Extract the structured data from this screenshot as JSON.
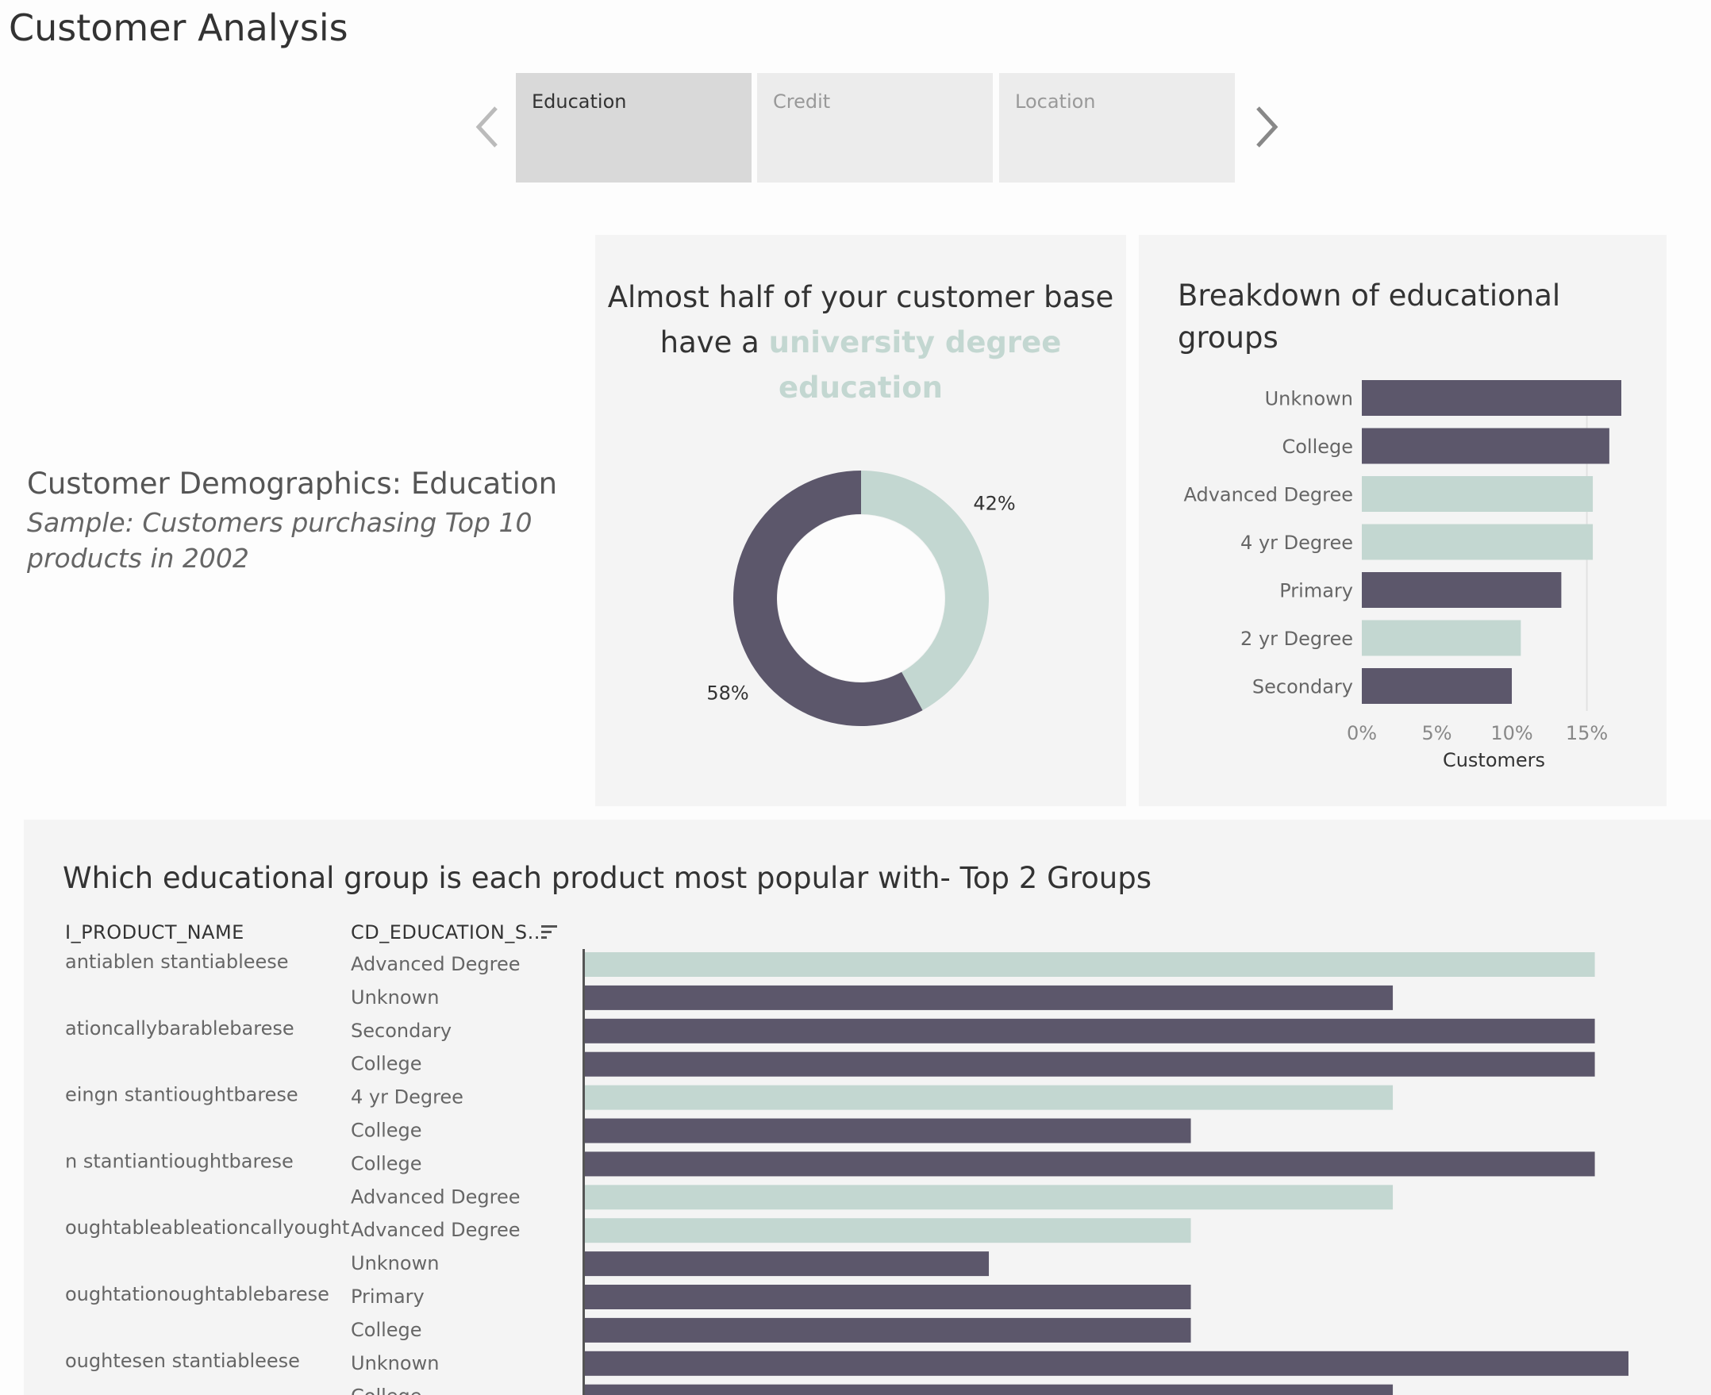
{
  "page_title": "Customer Analysis",
  "story_tabs": [
    {
      "label": "Education",
      "active": true
    },
    {
      "label": "Credit",
      "active": false
    },
    {
      "label": "Location",
      "active": false
    }
  ],
  "nav": {
    "prev_icon": "chevron-left-icon",
    "next_icon": "chevron-right-icon"
  },
  "intro": {
    "title": "Customer Demographics: Education",
    "subtitle": "Sample: Customers purchasing Top 10 products in 2002"
  },
  "colors": {
    "dark": "#5c576b",
    "light": "#c3d7d1",
    "panel": "#f4f4f4"
  },
  "donut": {
    "title_part1": "Almost half of your customer base  have a ",
    "title_highlight": "university degree education"
  },
  "breakdown": {
    "title": "Breakdown of educational groups"
  },
  "bottom": {
    "title": "Which educational group is each product most popular with- Top 2 Groups",
    "col_product": "I_PRODUCT_NAME",
    "col_education": "CD_EDUCATION_S..",
    "sort_icon": "sort-descending-icon"
  },
  "chart_data": [
    {
      "type": "pie",
      "subtype": "donut",
      "labels": [
        "42%",
        "58%"
      ],
      "values": [
        42,
        58
      ],
      "colors": [
        "#c3d7d1",
        "#5c576b"
      ]
    },
    {
      "type": "bar",
      "orientation": "horizontal",
      "categories": [
        "Unknown",
        "College",
        "Advanced Degree",
        "4 yr Degree",
        "Primary",
        "2 yr Degree",
        "Secondary"
      ],
      "values": [
        17.3,
        16.5,
        15.4,
        15.4,
        13.3,
        10.6,
        10.0
      ],
      "colors": [
        "#5c576b",
        "#5c576b",
        "#c3d7d1",
        "#c3d7d1",
        "#5c576b",
        "#c3d7d1",
        "#5c576b"
      ],
      "xlabel": "Customers",
      "x_ticks": [
        "0%",
        "5%",
        "10%",
        "15%"
      ],
      "xlim": [
        0,
        17.3
      ]
    },
    {
      "type": "bar",
      "orientation": "horizontal",
      "rows": [
        {
          "product": "antiablen stantiableese",
          "education": "Advanced Degree",
          "value": 6,
          "color": "#c3d7d1"
        },
        {
          "product": "",
          "education": "Unknown",
          "value": 4.8,
          "color": "#5c576b"
        },
        {
          "product": "ationcallybarablebarese",
          "education": "Secondary",
          "value": 6,
          "color": "#5c576b"
        },
        {
          "product": "",
          "education": "College",
          "value": 6,
          "color": "#5c576b"
        },
        {
          "product": "eingn stantioughtbarese",
          "education": "4 yr Degree",
          "value": 4.8,
          "color": "#c3d7d1"
        },
        {
          "product": "",
          "education": "College",
          "value": 3.6,
          "color": "#5c576b"
        },
        {
          "product": "n stantiantioughtbarese",
          "education": "College",
          "value": 6,
          "color": "#5c576b"
        },
        {
          "product": "",
          "education": "Advanced Degree",
          "value": 4.8,
          "color": "#c3d7d1"
        },
        {
          "product": "oughtableableationcallyought",
          "education": "Advanced Degree",
          "value": 3.6,
          "color": "#c3d7d1"
        },
        {
          "product": "",
          "education": "Unknown",
          "value": 2.4,
          "color": "#5c576b"
        },
        {
          "product": "oughtationoughtablebarese",
          "education": "Primary",
          "value": 3.6,
          "color": "#5c576b"
        },
        {
          "product": "",
          "education": "College",
          "value": 3.6,
          "color": "#5c576b"
        },
        {
          "product": "oughtesen stantiableese",
          "education": "Unknown",
          "value": 6.2,
          "color": "#5c576b"
        },
        {
          "product": "",
          "education": "College",
          "value": 4.8,
          "color": "#5c576b"
        }
      ],
      "xlim": [
        0,
        6.2
      ]
    }
  ]
}
